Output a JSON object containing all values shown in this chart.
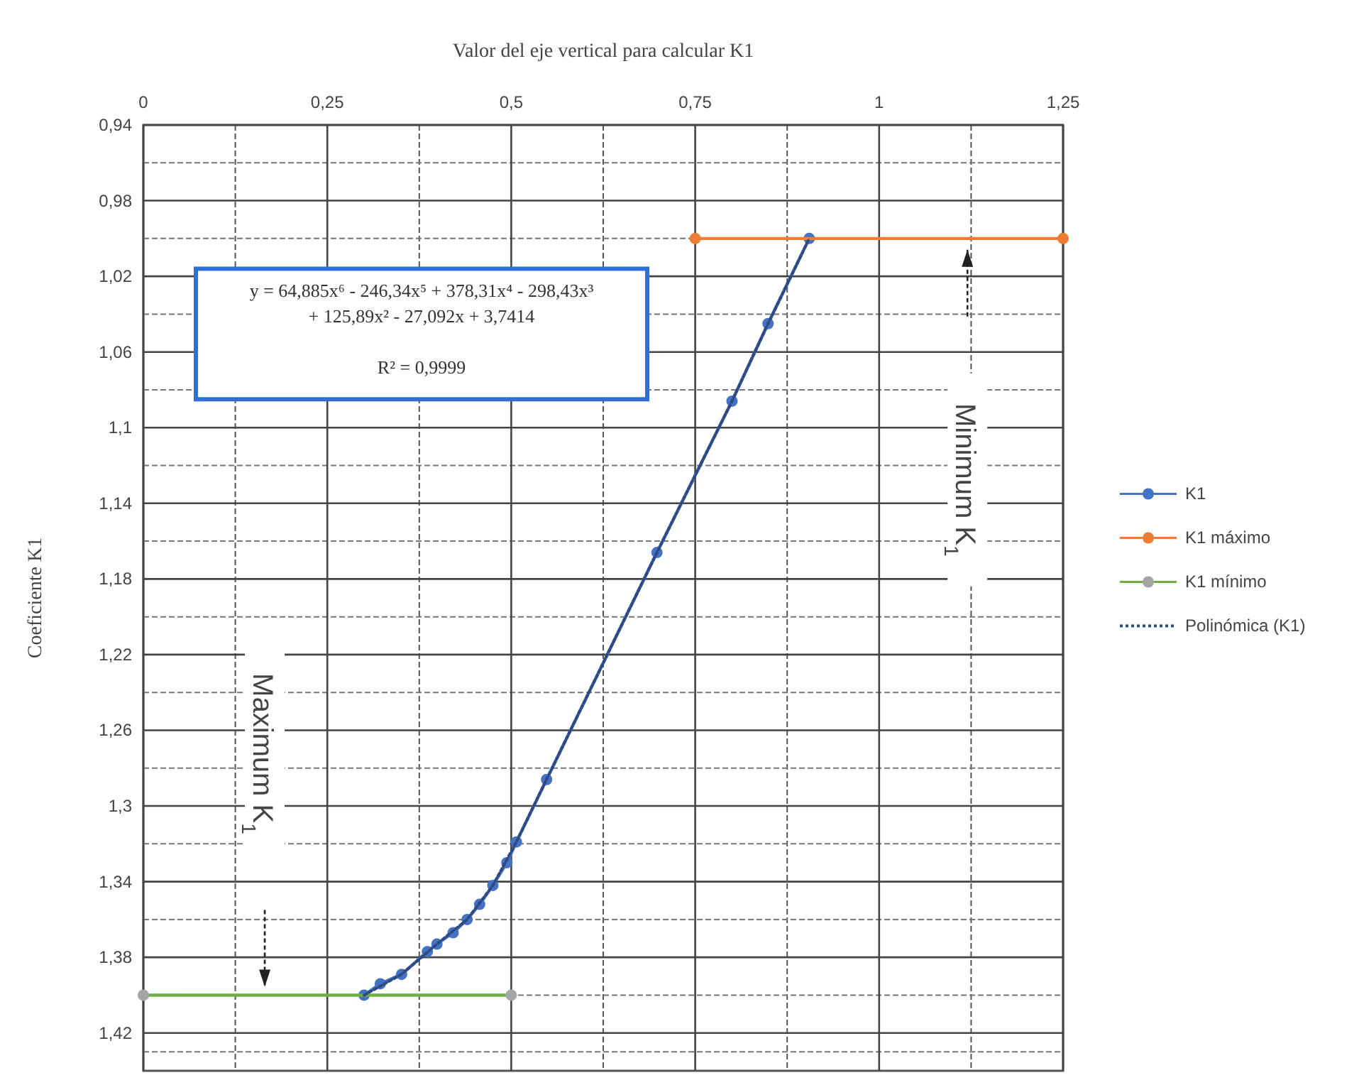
{
  "chart_data": {
    "type": "line",
    "xlabel": "Valor del eje vertical para calcular K1",
    "ylabel": "Coeficiente K1",
    "xlim": [
      0,
      1.25
    ],
    "xticks": [
      0,
      {
        "value": 0.25,
        "label": "0,25"
      },
      {
        "value": 0.5,
        "label": "0,5"
      },
      {
        "value": 0.75,
        "label": "0,75"
      },
      1,
      {
        "value": 1.25,
        "label": "1,25"
      }
    ],
    "ylim": [
      1.44,
      0.94
    ],
    "yticks": [
      {
        "value": 0.94,
        "label": "0,94"
      },
      {
        "value": 0.98,
        "label": "0,98"
      },
      {
        "value": 1.02,
        "label": "1,02"
      },
      {
        "value": 1.06,
        "label": "1,06"
      },
      {
        "value": 1.1,
        "label": "1,1"
      },
      {
        "value": 1.14,
        "label": "1,14"
      },
      {
        "value": 1.18,
        "label": "1,18"
      },
      {
        "value": 1.22,
        "label": "1,22"
      },
      {
        "value": 1.26,
        "label": "1,26"
      },
      {
        "value": 1.3,
        "label": "1,3"
      },
      {
        "value": 1.34,
        "label": "1,34"
      },
      {
        "value": 1.38,
        "label": "1,38"
      },
      {
        "value": 1.42,
        "label": "1,42"
      }
    ],
    "grid": true,
    "legend": "right",
    "marker": "circle",
    "series": [
      {
        "name": "K1",
        "color": "#4472c4",
        "x": [
          0.3,
          0.322,
          0.351,
          0.386,
          0.399,
          0.421,
          0.44,
          0.457,
          0.475,
          0.494,
          0.507,
          0.548,
          0.698,
          0.8,
          0.849,
          0.905
        ],
        "values": [
          1.4,
          1.394,
          1.389,
          1.377,
          1.373,
          1.367,
          1.36,
          1.352,
          1.342,
          1.33,
          1.319,
          1.286,
          1.166,
          1.086,
          1.045,
          1.0
        ]
      },
      {
        "name": "K1 máximo",
        "color": "#ed7d31",
        "x": [
          0.75,
          1.25
        ],
        "values": [
          1.0,
          1.0
        ]
      },
      {
        "name": "K1 mínimo",
        "color": "#70ad47",
        "colors": [
          "#a5a5a5",
          "#a5a5a5"
        ],
        "x": [
          0,
          0.5
        ],
        "values": [
          1.4,
          1.4
        ]
      },
      {
        "name": "Polinómica (K1)",
        "color": "#2f4a80",
        "line_style": "dotted",
        "marker": "none",
        "x": [
          0.3,
          0.351,
          0.399,
          0.44,
          0.475,
          0.507,
          0.548,
          0.698,
          0.8,
          0.849,
          0.905
        ],
        "values": [
          1.4,
          1.389,
          1.373,
          1.36,
          1.342,
          1.319,
          1.286,
          1.166,
          1.086,
          1.045,
          1.0
        ]
      }
    ],
    "annotations": [
      "y = 64,885x⁶ - 246,34x⁵ + 378,31x⁴ - 298,43x³\n+ 125,89x² - 27,092x + 3,7414\n\nR² = 0,9999",
      "Maximum K$_{1}$",
      "Minimum K$_{1}$"
    ]
  }
}
